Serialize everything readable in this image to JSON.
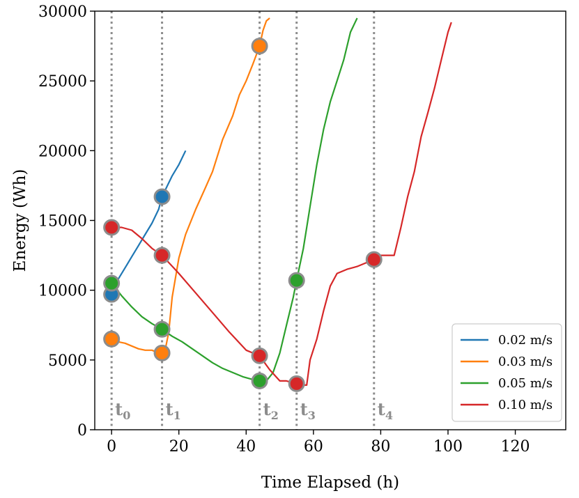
{
  "chart_data": {
    "type": "line",
    "title": "",
    "xlabel": "Time Elapsed (h)",
    "ylabel": "Energy (Wh)",
    "xlim": [
      -5,
      135
    ],
    "ylim": [
      0,
      30000
    ],
    "xticks": [
      0,
      20,
      40,
      60,
      80,
      100,
      120
    ],
    "yticks": [
      0,
      5000,
      10000,
      15000,
      20000,
      25000,
      30000
    ],
    "grid": false,
    "legend_position": "bottom-right",
    "events": [
      {
        "label": "t",
        "sub": "0",
        "x": 0
      },
      {
        "label": "t",
        "sub": "1",
        "x": 15
      },
      {
        "label": "t",
        "sub": "2",
        "x": 44
      },
      {
        "label": "t",
        "sub": "3",
        "x": 55
      },
      {
        "label": "t",
        "sub": "4",
        "x": 78
      }
    ],
    "series": [
      {
        "name": "0.02 m/s",
        "color": "#1f77b4",
        "x": [
          0,
          2,
          4,
          6,
          8,
          10,
          12,
          14,
          15,
          16,
          18,
          20,
          22
        ],
        "y": [
          9700,
          10800,
          11600,
          12400,
          13200,
          14000,
          14800,
          15800,
          16700,
          17200,
          18200,
          19000,
          20000
        ],
        "markers": [
          {
            "x": 0,
            "y": 9700
          },
          {
            "x": 15,
            "y": 16700
          }
        ]
      },
      {
        "name": "0.03 m/s",
        "color": "#ff7f0e",
        "x": [
          0,
          2,
          4,
          6,
          8,
          10,
          12,
          14,
          15,
          16,
          17,
          18,
          20,
          22,
          25,
          28,
          30,
          33,
          36,
          38,
          40,
          42,
          44,
          45,
          46,
          47
        ],
        "y": [
          6500,
          6300,
          6200,
          6000,
          5800,
          5700,
          5700,
          5500,
          5500,
          5800,
          7000,
          9500,
          12300,
          14000,
          15800,
          17400,
          18500,
          20800,
          22500,
          24000,
          25000,
          26200,
          27500,
          28600,
          29300,
          29500
        ],
        "markers": [
          {
            "x": 0,
            "y": 6500
          },
          {
            "x": 15,
            "y": 5500
          },
          {
            "x": 44,
            "y": 27500
          }
        ]
      },
      {
        "name": "0.05 m/s",
        "color": "#2ca02c",
        "x": [
          0,
          3,
          6,
          9,
          12,
          15,
          18,
          21,
          24,
          27,
          30,
          33,
          36,
          39,
          42,
          44,
          46,
          48,
          50,
          52,
          54,
          55,
          57,
          59,
          61,
          63,
          65,
          67,
          69,
          71,
          73
        ],
        "y": [
          10500,
          9600,
          8800,
          8100,
          7600,
          7200,
          6700,
          6300,
          5800,
          5300,
          4800,
          4400,
          4100,
          3800,
          3600,
          3500,
          3500,
          4100,
          5500,
          7500,
          9500,
          10700,
          13000,
          16000,
          19000,
          21500,
          23500,
          25000,
          26500,
          28500,
          29500
        ],
        "markers": [
          {
            "x": 0,
            "y": 10500
          },
          {
            "x": 15,
            "y": 7200
          },
          {
            "x": 44,
            "y": 3500
          },
          {
            "x": 55,
            "y": 10700
          }
        ]
      },
      {
        "name": "0.10 m/s",
        "color": "#d62728",
        "x": [
          0,
          3,
          6,
          9,
          12,
          15,
          20,
          25,
          30,
          35,
          40,
          44,
          47,
          50,
          52,
          55,
          57,
          58,
          59,
          61,
          63,
          65,
          67,
          70,
          73,
          76,
          78,
          80,
          82,
          84,
          86,
          88,
          90,
          92,
          94,
          96,
          98,
          100,
          101
        ],
        "y": [
          14500,
          14500,
          14300,
          13700,
          13000,
          12500,
          11200,
          9800,
          8400,
          7000,
          5700,
          5300,
          4300,
          3500,
          3500,
          3300,
          3200,
          3200,
          5000,
          6500,
          8500,
          10300,
          11200,
          11500,
          11700,
          12000,
          12200,
          12500,
          12500,
          12500,
          14500,
          16700,
          18500,
          21000,
          22700,
          24500,
          26500,
          28500,
          29200
        ],
        "markers": [
          {
            "x": 0,
            "y": 14500
          },
          {
            "x": 15,
            "y": 12500
          },
          {
            "x": 44,
            "y": 5300
          },
          {
            "x": 55,
            "y": 3300
          },
          {
            "x": 78,
            "y": 12200
          }
        ]
      }
    ]
  }
}
